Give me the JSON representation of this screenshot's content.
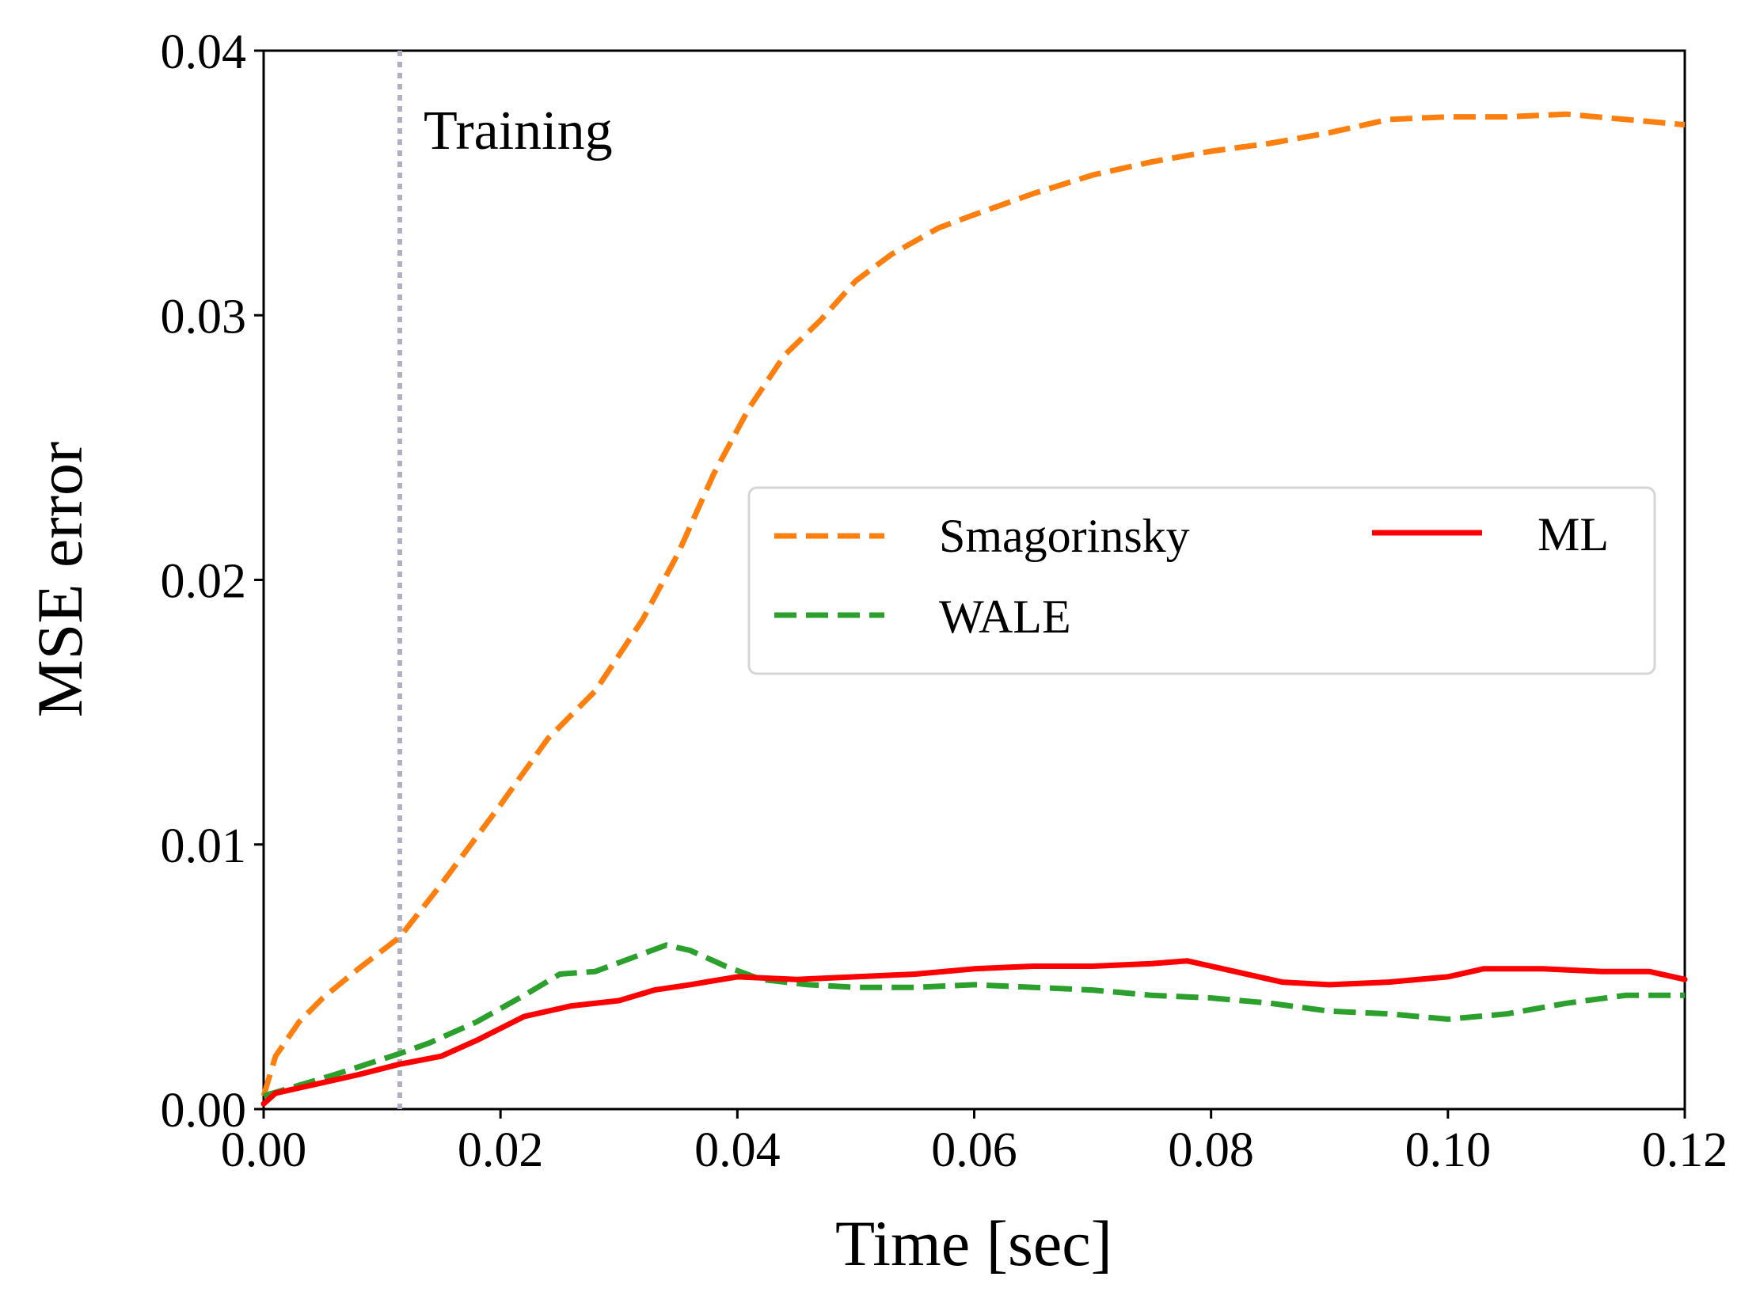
{
  "chart_data": {
    "type": "line",
    "title": "",
    "xlabel": "Time [sec]",
    "ylabel": "MSE error",
    "xlim": [
      0,
      0.12
    ],
    "ylim": [
      0,
      0.04
    ],
    "x_ticks": [
      "0.00",
      "0.02",
      "0.04",
      "0.06",
      "0.08",
      "0.10",
      "0.12"
    ],
    "y_ticks": [
      "0.00",
      "0.01",
      "0.02",
      "0.03",
      "0.04"
    ],
    "grid": false,
    "legend_position": "center-right",
    "annotations": [
      {
        "text": "Training",
        "x": 0.0115,
        "color": "#b0b0c4",
        "style": "dotted vertical line"
      }
    ],
    "series": [
      {
        "name": "Smagorinsky",
        "color": "#ff7f0e",
        "style": "dashed",
        "points": [
          [
            0,
            0.0005
          ],
          [
            0.001,
            0.002
          ],
          [
            0.003,
            0.0033
          ],
          [
            0.005,
            0.0042
          ],
          [
            0.008,
            0.0053
          ],
          [
            0.0115,
            0.0065
          ],
          [
            0.015,
            0.0085
          ],
          [
            0.02,
            0.0115
          ],
          [
            0.024,
            0.014
          ],
          [
            0.028,
            0.0158
          ],
          [
            0.032,
            0.0185
          ],
          [
            0.035,
            0.021
          ],
          [
            0.038,
            0.024
          ],
          [
            0.041,
            0.0265
          ],
          [
            0.044,
            0.0285
          ],
          [
            0.047,
            0.0298
          ],
          [
            0.05,
            0.0313
          ],
          [
            0.053,
            0.0323
          ],
          [
            0.057,
            0.0333
          ],
          [
            0.06,
            0.0338
          ],
          [
            0.065,
            0.0346
          ],
          [
            0.07,
            0.0353
          ],
          [
            0.075,
            0.0358
          ],
          [
            0.08,
            0.0362
          ],
          [
            0.085,
            0.0365
          ],
          [
            0.09,
            0.0369
          ],
          [
            0.095,
            0.0374
          ],
          [
            0.1,
            0.0375
          ],
          [
            0.105,
            0.0375
          ],
          [
            0.11,
            0.0376
          ],
          [
            0.115,
            0.0374
          ],
          [
            0.12,
            0.0372
          ]
        ]
      },
      {
        "name": "WALE",
        "color": "#2ca02c",
        "style": "dashed",
        "points": [
          [
            0,
            0.0005
          ],
          [
            0.003,
            0.0009
          ],
          [
            0.006,
            0.0013
          ],
          [
            0.0115,
            0.0021
          ],
          [
            0.014,
            0.0025
          ],
          [
            0.018,
            0.0033
          ],
          [
            0.022,
            0.0043
          ],
          [
            0.025,
            0.0051
          ],
          [
            0.028,
            0.0052
          ],
          [
            0.031,
            0.0057
          ],
          [
            0.034,
            0.0062
          ],
          [
            0.036,
            0.006
          ],
          [
            0.039,
            0.0054
          ],
          [
            0.042,
            0.0049
          ],
          [
            0.046,
            0.0047
          ],
          [
            0.05,
            0.0046
          ],
          [
            0.055,
            0.0046
          ],
          [
            0.06,
            0.0047
          ],
          [
            0.065,
            0.0046
          ],
          [
            0.07,
            0.0045
          ],
          [
            0.075,
            0.0043
          ],
          [
            0.08,
            0.0042
          ],
          [
            0.085,
            0.004
          ],
          [
            0.09,
            0.0037
          ],
          [
            0.095,
            0.0036
          ],
          [
            0.1,
            0.0034
          ],
          [
            0.105,
            0.0036
          ],
          [
            0.11,
            0.004
          ],
          [
            0.115,
            0.0043
          ],
          [
            0.12,
            0.0043
          ]
        ]
      },
      {
        "name": "ML",
        "color": "#ff0000",
        "style": "solid",
        "points": [
          [
            0,
            0.0002
          ],
          [
            0.001,
            0.0006
          ],
          [
            0.004,
            0.0009
          ],
          [
            0.008,
            0.0013
          ],
          [
            0.0115,
            0.0017
          ],
          [
            0.015,
            0.002
          ],
          [
            0.018,
            0.0026
          ],
          [
            0.022,
            0.0035
          ],
          [
            0.026,
            0.0039
          ],
          [
            0.03,
            0.0041
          ],
          [
            0.033,
            0.0045
          ],
          [
            0.036,
            0.0047
          ],
          [
            0.04,
            0.005
          ],
          [
            0.045,
            0.0049
          ],
          [
            0.05,
            0.005
          ],
          [
            0.055,
            0.0051
          ],
          [
            0.06,
            0.0053
          ],
          [
            0.065,
            0.0054
          ],
          [
            0.07,
            0.0054
          ],
          [
            0.075,
            0.0055
          ],
          [
            0.078,
            0.0056
          ],
          [
            0.082,
            0.0052
          ],
          [
            0.086,
            0.0048
          ],
          [
            0.09,
            0.0047
          ],
          [
            0.095,
            0.0048
          ],
          [
            0.1,
            0.005
          ],
          [
            0.103,
            0.0053
          ],
          [
            0.108,
            0.0053
          ],
          [
            0.113,
            0.0052
          ],
          [
            0.117,
            0.0052
          ],
          [
            0.12,
            0.0049
          ]
        ]
      }
    ]
  }
}
